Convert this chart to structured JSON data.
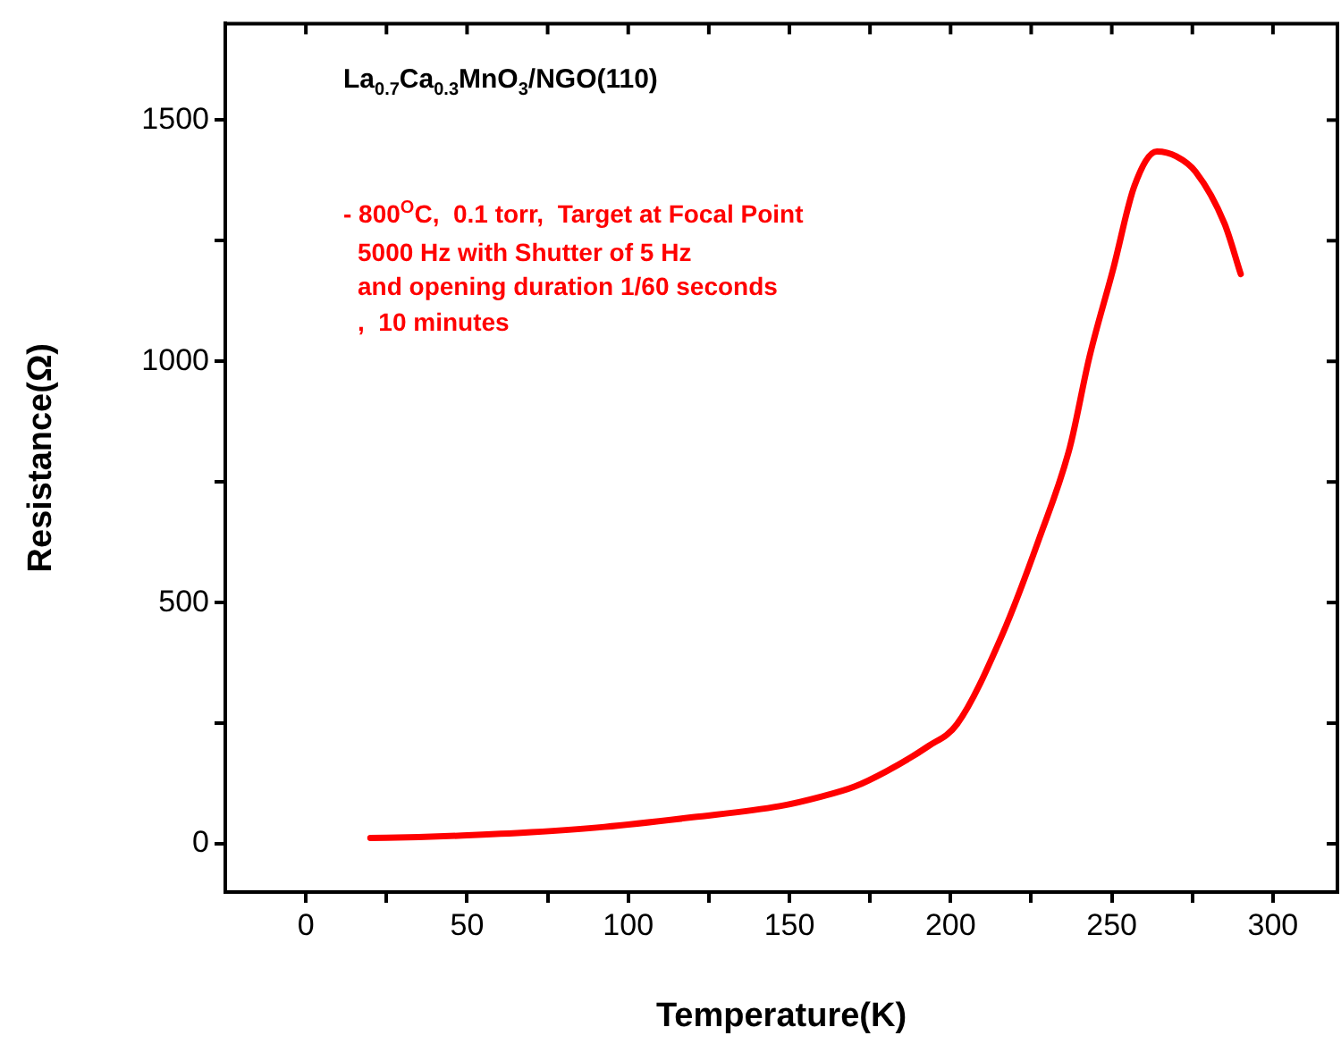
{
  "chart_data": {
    "type": "line",
    "xlabel": "Temperature(K)",
    "ylabel": "Resistance(Ω)",
    "x": [
      20,
      35,
      48.5,
      70,
      92.6,
      120,
      147,
      160,
      170,
      180,
      193,
      202,
      216,
      227.5,
      237,
      243,
      250.5,
      257,
      264,
      270,
      276,
      285,
      290
    ],
    "series": [
      {
        "color": "#ff0000",
        "values": [
          12,
          14,
          17,
          24,
          35,
          55,
          78,
          98,
          118,
          150,
          202,
          248,
          433,
          633,
          822,
          1007,
          1193,
          1363,
          1435,
          1425,
          1393,
          1285,
          1181
        ]
      }
    ],
    "xlim": [
      -25,
      320
    ],
    "ylim": [
      -100,
      1700
    ],
    "xticks": [
      0,
      {
        "value": 25,
        "label": null
      },
      50,
      {
        "value": 75,
        "label": null
      },
      100,
      {
        "value": 125,
        "label": null
      },
      150,
      {
        "value": 175,
        "label": null
      },
      200,
      {
        "value": 225,
        "label": null
      },
      250,
      {
        "value": 275,
        "label": null
      },
      300
    ],
    "yticks": [
      0,
      {
        "value": 250,
        "label": null
      },
      500,
      {
        "value": 750,
        "label": null
      },
      1000,
      {
        "value": 1250,
        "label": null
      },
      1500
    ],
    "grid": false,
    "legend": false,
    "marker": "none",
    "line_style": "solid",
    "annotations": [
      "La$_{0.7}$Ca$_{0.3}$MnO$_{3}$/NGO(110)",
      "- 800$^{O}$C,  0.1 torr,  Target at Focal Point",
      "5000 Hz with Shutter of 5 Hz",
      "and opening duration 1/60 seconds",
      ",  10 minutes"
    ]
  }
}
